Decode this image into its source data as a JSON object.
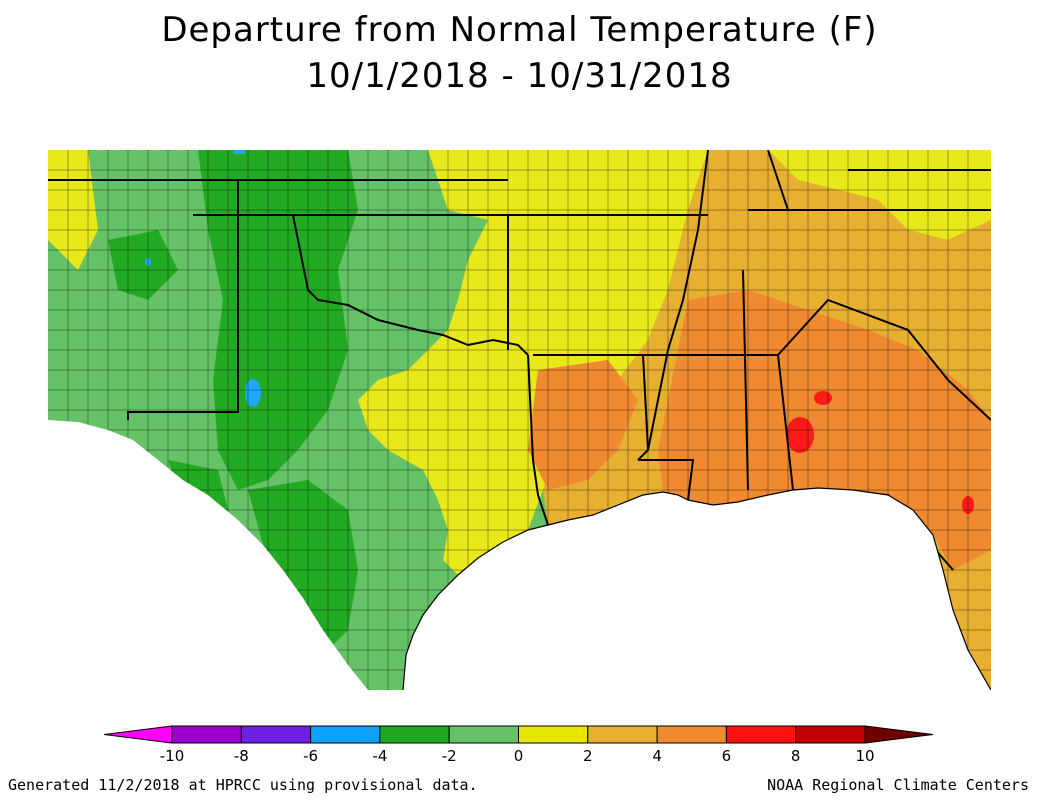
{
  "header": {
    "title": "Departure from Normal Temperature (F)",
    "date_range": "10/1/2018 - 10/31/2018"
  },
  "legend": {
    "tick_labels": [
      "-10",
      "-8",
      "-6",
      "-4",
      "-2",
      "0",
      "2",
      "4",
      "6",
      "8",
      "10"
    ],
    "colors": [
      "#ff00ff",
      "#9900cc",
      "#6f1fe0",
      "#0fa0ff",
      "#1fa81f",
      "#66c266",
      "#e6e600",
      "#e8b030",
      "#f08a30",
      "#ff1010",
      "#c00000",
      "#700000"
    ],
    "range": [
      -10,
      10
    ],
    "step": 2
  },
  "map": {
    "colors": {
      "ocean": "#ffffff",
      "light_green": "#66c266",
      "green": "#22aa22",
      "blue": "#1fa8ff",
      "yellow": "#e8e81a",
      "gold": "#e8b030",
      "orange": "#f08a30",
      "red": "#ff1a1a",
      "border": "#000000"
    }
  },
  "footer": {
    "left": "Generated 11/2/2018 at HPRCC using provisional data.",
    "right": "NOAA Regional Climate Centers"
  }
}
